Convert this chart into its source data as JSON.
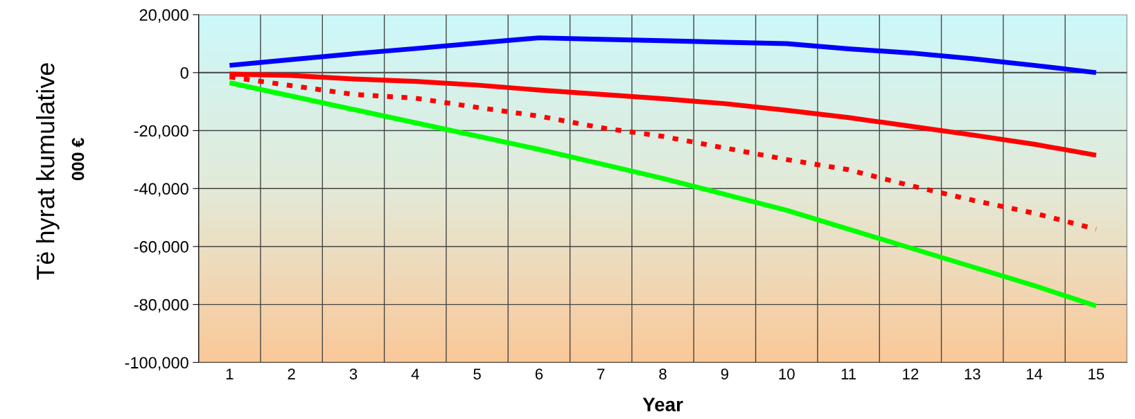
{
  "chart_data": {
    "type": "line",
    "ylabel": "Të hyrat kumulative",
    "xlabel": "Year",
    "annotations": [
      "000 €"
    ],
    "categories": [
      "1",
      "2",
      "3",
      "4",
      "5",
      "6",
      "7",
      "8",
      "9",
      "10",
      "11",
      "12",
      "13",
      "14",
      "15"
    ],
    "series": [
      {
        "color": "#0000ff",
        "values": [
          2500,
          4500,
          6500,
          8300,
          10200,
          12000,
          11500,
          11000,
          10500,
          10000,
          8200,
          6800,
          4800,
          2500,
          0
        ]
      },
      {
        "color": "#ff0000",
        "values": [
          -500,
          -1000,
          -2200,
          -3000,
          -4300,
          -6000,
          -7500,
          -9000,
          -10700,
          -13000,
          -15500,
          -18500,
          -21500,
          -24700,
          -28500
        ]
      },
      {
        "color": "#ff0000",
        "line_style": "dashed",
        "values": [
          -1500,
          -4500,
          -7500,
          -8800,
          -12000,
          -15000,
          -19000,
          -22000,
          -26000,
          -30000,
          -33500,
          -39000,
          -44000,
          -48500,
          -54000
        ]
      },
      {
        "color": "#00ff00",
        "values": [
          -3500,
          -8100,
          -12700,
          -17300,
          -21900,
          -26500,
          -31500,
          -36500,
          -42000,
          -47500,
          -54000,
          -60500,
          -67000,
          -73500,
          -80500
        ]
      }
    ],
    "ylim": [
      -100000,
      20000
    ],
    "yticks": [
      {
        "value": -100000,
        "label": "-100,000"
      },
      {
        "value": -80000,
        "label": "-80,000"
      },
      {
        "value": -60000,
        "label": "-60,000"
      },
      {
        "value": -40000,
        "label": "-40,000"
      },
      {
        "value": -20000,
        "label": "-20,000"
      },
      0,
      {
        "value": 20000,
        "label": "20,000"
      }
    ],
    "grid": true,
    "marker": "none",
    "line_style": "solid"
  }
}
